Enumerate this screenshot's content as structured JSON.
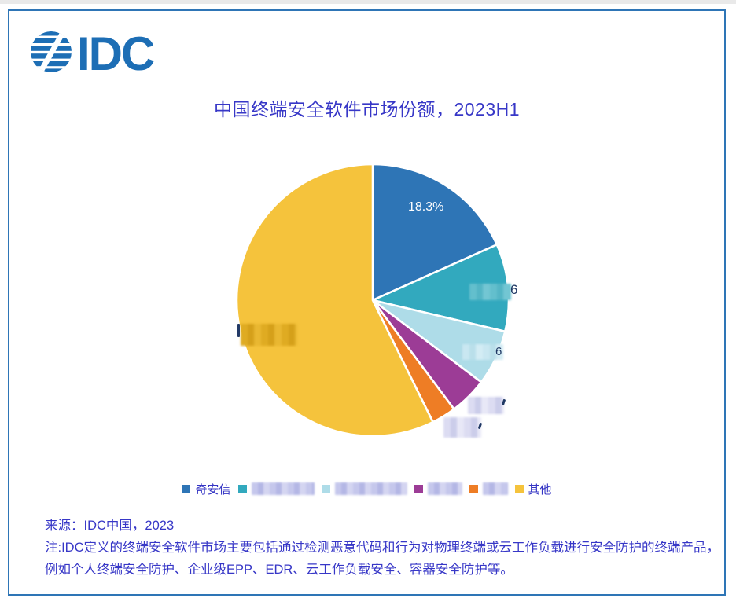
{
  "logo": {
    "text": "IDC",
    "color": "#1d6eb5"
  },
  "header": {
    "title": "中国终端安全软件市场份额，2023H1"
  },
  "chart_data": {
    "type": "pie",
    "title": "中国终端安全软件市场份额，2023H1",
    "categories": [
      "奇安信",
      "(censored)",
      "(censored)",
      "(censored)",
      "(censored)",
      "其他"
    ],
    "values": [
      18.3,
      10.4,
      6.6,
      4.5,
      2.9,
      57.3
    ],
    "colors": [
      "#2e75b6",
      "#32a9be",
      "#aedce8",
      "#9c3c96",
      "#ee7d25",
      "#f5c33c"
    ],
    "value_labels_visible": [
      "18.3%",
      "censored",
      "censored",
      "censored",
      "censored",
      "censored"
    ],
    "legend_position": "bottom",
    "start_angle_deg": 0,
    "direction": "clockwise"
  },
  "pie_labels": {
    "slice0": "18.3%",
    "teal_fragment": "6",
    "lightblue_fragment": "6"
  },
  "legend": {
    "items": [
      {
        "label": "奇安信",
        "censored": false,
        "color": "#2e75b6"
      },
      {
        "label": "",
        "censored": true,
        "blur_width": 80,
        "color": "#32a9be"
      },
      {
        "label": "",
        "censored": true,
        "blur_width": 92,
        "color": "#aedce8"
      },
      {
        "label": "",
        "censored": true,
        "blur_width": 44,
        "color": "#9c3c96"
      },
      {
        "label": "",
        "censored": true,
        "blur_width": 32,
        "color": "#ee7d25"
      },
      {
        "label": "其他",
        "censored": false,
        "color": "#f5c33c"
      }
    ]
  },
  "footer": {
    "source": "来源：IDC中国，2023",
    "note_line1": "注:IDC定义的终端安全软件市场主要包括通过检测恶意代码和行为对物理终端或云工作负载进行安全防护的终端产品，",
    "note_line2": "例如个人终端安全防护、企业级EPP、EDR、云工作负载安全、容器安全防护等。"
  }
}
